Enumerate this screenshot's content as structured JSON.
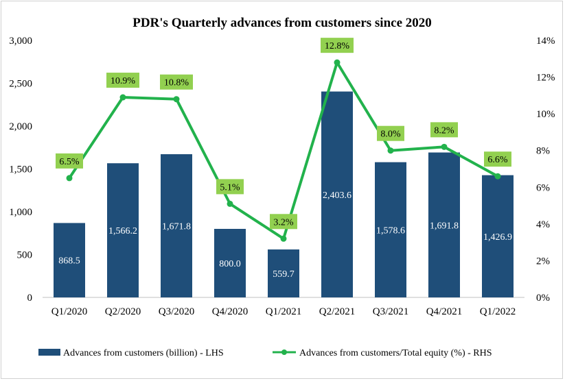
{
  "chart_data": {
    "type": "bar",
    "title": "PDR's Quarterly  advances from  customers since 2020",
    "categories": [
      "Q1/2020",
      "Q2/2020",
      "Q3/2020",
      "Q4/2020",
      "Q1/2021",
      "Q2/2021",
      "Q3/2021",
      "Q4/2021",
      "Q1/2022"
    ],
    "y_left": {
      "min": 0,
      "max": 3000,
      "ticks": [
        "0",
        "500",
        "1,000",
        "1,500",
        "2,000",
        "2,500",
        "3,000"
      ]
    },
    "y_right": {
      "min": 0,
      "max": 14,
      "ticks": [
        "0%",
        "2%",
        "4%",
        "6%",
        "8%",
        "10%",
        "12%",
        "14%"
      ]
    },
    "legend_position": "bottom",
    "grid": false,
    "series": [
      {
        "name": "Advances from customers (billion) - LHS",
        "type": "bar",
        "axis": "left",
        "color": "#1f4e79",
        "values": [
          868.5,
          1566.2,
          1671.8,
          800.0,
          559.7,
          2403.6,
          1578.6,
          1691.8,
          1426.9
        ],
        "labels": [
          "868.5",
          "1,566.2",
          "1,671.8",
          "800.0",
          "559.7",
          "2,403.6",
          "1,578.6",
          "1,691.8",
          "1,426.9"
        ]
      },
      {
        "name": "Advances from customers/Total equity (%) - RHS",
        "type": "line",
        "axis": "right",
        "color": "#22b24c",
        "label_bg": "#92d050",
        "values": [
          6.5,
          10.9,
          10.8,
          5.1,
          3.2,
          12.8,
          8.0,
          8.2,
          6.6
        ],
        "labels": [
          "6.5%",
          "10.9%",
          "10.8%",
          "5.1%",
          "3.2%",
          "12.8%",
          "8.0%",
          "8.2%",
          "6.6%"
        ]
      }
    ]
  }
}
